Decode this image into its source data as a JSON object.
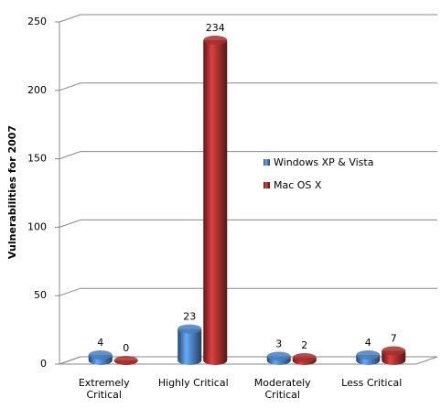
{
  "chart_data": {
    "type": "bar3d",
    "y_label": "Vulnerabilities for 2007",
    "categories": [
      "Extremely Critical",
      "Highly Critical",
      "Moderately Critical",
      "Less Critical"
    ],
    "series": [
      {
        "name": "Windows XP & Vista",
        "color": "#4a7ebb",
        "values": [
          4,
          23,
          3,
          4
        ]
      },
      {
        "name": "Mac OS X",
        "color": "#a5302e",
        "values": [
          0,
          234,
          2,
          7
        ]
      }
    ],
    "ylim": [
      0,
      250
    ],
    "yticks": [
      0,
      50,
      100,
      150,
      200,
      250
    ],
    "grid": true,
    "legend": "right"
  }
}
